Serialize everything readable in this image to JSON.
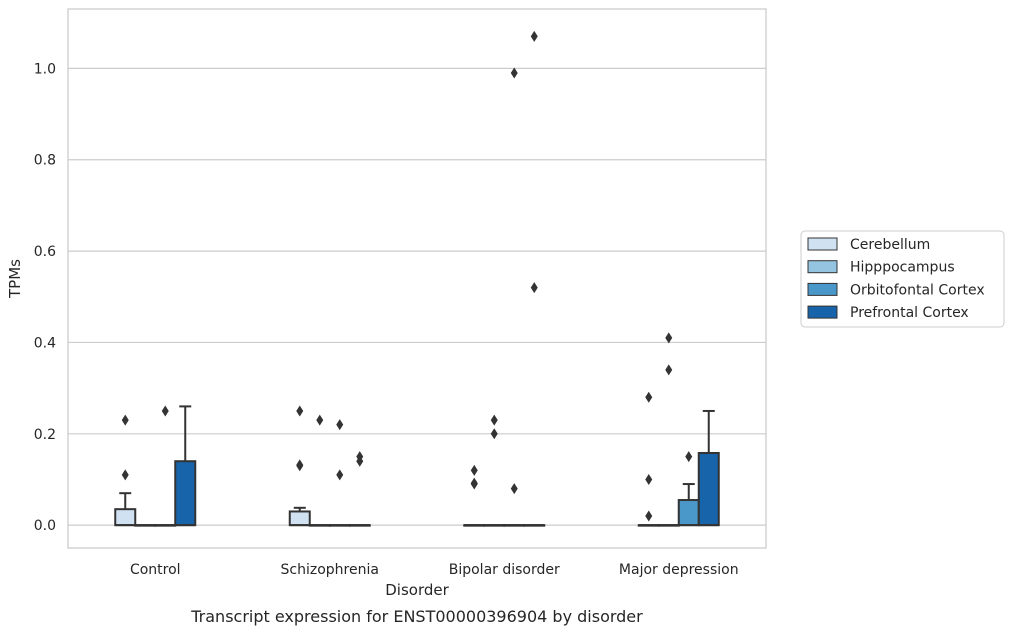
{
  "chart_data": {
    "type": "boxplot",
    "caption": "Transcript expression for ENST00000396904 by disorder",
    "xlabel": "Disorder",
    "ylabel": "TPMs",
    "ylim": [
      -0.05,
      1.13
    ],
    "yticks": [
      "0.0",
      "0.2",
      "0.4",
      "0.6",
      "0.8",
      "1.0"
    ],
    "grid": "horizontal",
    "legend_position": "right",
    "categories": [
      "Control",
      "Schizophrenia",
      "Bipolar disorder",
      "Major depression"
    ],
    "series": [
      {
        "name": "Cerebellum",
        "color": "#d0e1f2",
        "boxes": [
          {
            "q1": 0.0,
            "median": 0.0,
            "q3": 0.035,
            "whisker_low": 0.0,
            "whisker_high": 0.07,
            "outliers": [
              0.11,
              0.23
            ]
          },
          {
            "q1": 0.0,
            "median": 0.0,
            "q3": 0.03,
            "whisker_low": 0.0,
            "whisker_high": 0.038,
            "outliers": [
              0.13,
              0.132,
              0.25
            ]
          },
          {
            "q1": 0.0,
            "median": 0.0,
            "q3": 0.0,
            "whisker_low": 0.0,
            "whisker_high": 0.0,
            "outliers": [
              0.09,
              0.092,
              0.12
            ]
          },
          {
            "q1": 0.0,
            "median": 0.0,
            "q3": 0.0,
            "whisker_low": 0.0,
            "whisker_high": 0.0,
            "outliers": [
              0.02,
              0.1,
              0.28
            ]
          }
        ]
      },
      {
        "name": "Hipppocampus",
        "color": "#94c4df",
        "boxes": [
          {
            "q1": 0.0,
            "median": 0.0,
            "q3": 0.0,
            "whisker_low": 0.0,
            "whisker_high": 0.0,
            "outliers": []
          },
          {
            "q1": 0.0,
            "median": 0.0,
            "q3": 0.0,
            "whisker_low": 0.0,
            "whisker_high": 0.0,
            "outliers": [
              0.23
            ]
          },
          {
            "q1": 0.0,
            "median": 0.0,
            "q3": 0.0,
            "whisker_low": 0.0,
            "whisker_high": 0.0,
            "outliers": [
              0.2,
              0.23
            ]
          },
          {
            "q1": 0.0,
            "median": 0.0,
            "q3": 0.0,
            "whisker_low": 0.0,
            "whisker_high": 0.0,
            "outliers": [
              0.34,
              0.41
            ]
          }
        ]
      },
      {
        "name": "Orbitofontal Cortex",
        "color": "#4a98c9",
        "boxes": [
          {
            "q1": 0.0,
            "median": 0.0,
            "q3": 0.0,
            "whisker_low": 0.0,
            "whisker_high": 0.0,
            "outliers": [
              0.25
            ]
          },
          {
            "q1": 0.0,
            "median": 0.0,
            "q3": 0.0,
            "whisker_low": 0.0,
            "whisker_high": 0.0,
            "outliers": [
              0.11,
              0.22
            ]
          },
          {
            "q1": 0.0,
            "median": 0.0,
            "q3": 0.0,
            "whisker_low": 0.0,
            "whisker_high": 0.0,
            "outliers": [
              0.08,
              0.99
            ]
          },
          {
            "q1": 0.0,
            "median": 0.0,
            "q3": 0.055,
            "whisker_low": 0.0,
            "whisker_high": 0.09,
            "outliers": [
              0.15
            ]
          }
        ]
      },
      {
        "name": "Prefrontal Cortex",
        "color": "#1764ab",
        "boxes": [
          {
            "q1": 0.0,
            "median": 0.0,
            "q3": 0.14,
            "whisker_low": 0.0,
            "whisker_high": 0.26,
            "outliers": []
          },
          {
            "q1": 0.0,
            "median": 0.0,
            "q3": 0.0,
            "whisker_low": 0.0,
            "whisker_high": 0.0,
            "outliers": [
              0.14,
              0.15
            ]
          },
          {
            "q1": 0.0,
            "median": 0.0,
            "q3": 0.0,
            "whisker_low": 0.0,
            "whisker_high": 0.0,
            "outliers": [
              0.52,
              1.07
            ]
          },
          {
            "q1": 0.0,
            "median": 0.0,
            "q3": 0.158,
            "whisker_low": 0.0,
            "whisker_high": 0.25,
            "outliers": []
          }
        ]
      }
    ]
  }
}
